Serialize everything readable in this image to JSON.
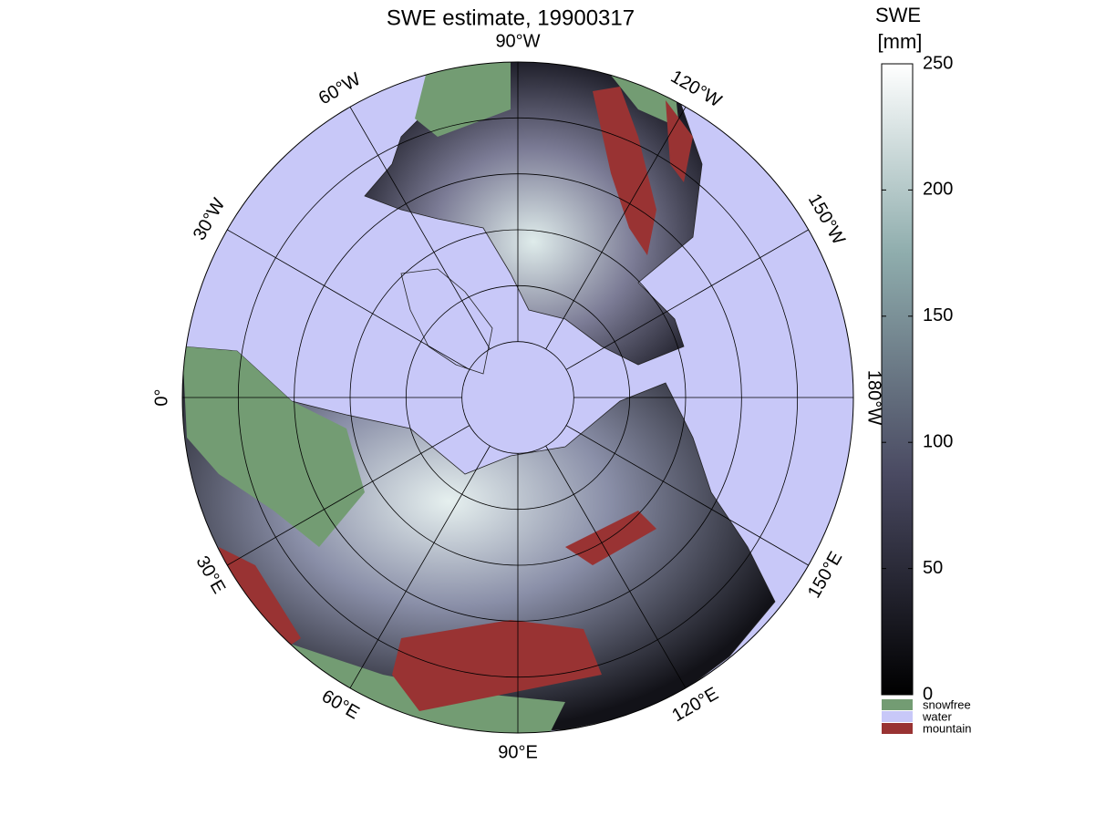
{
  "map": {
    "title": "SWE estimate, 19900317",
    "meridian_labels": [
      {
        "value": -90,
        "label": "90°W"
      },
      {
        "value": -60,
        "label": "60°W"
      },
      {
        "value": -30,
        "label": "30°W"
      },
      {
        "value": 0,
        "label": "0°"
      },
      {
        "value": 30,
        "label": "30°E"
      },
      {
        "value": 60,
        "label": "60°E"
      },
      {
        "value": 90,
        "label": "90°E"
      },
      {
        "value": 120,
        "label": "120°E"
      },
      {
        "value": 150,
        "label": "150°E"
      },
      {
        "value": 180,
        "label": "180°W"
      },
      {
        "value": -150,
        "label": "150°W"
      },
      {
        "value": -120,
        "label": "120°W"
      }
    ],
    "colorbar": {
      "title": [
        "SWE",
        "[mm]"
      ],
      "lim": [
        0,
        250
      ],
      "ticks": [
        0,
        50,
        100,
        150,
        200,
        250
      ]
    },
    "legend": [
      {
        "name": "snowfree",
        "color": "#739c73"
      },
      {
        "name": "water",
        "color": "#c8c8f8"
      },
      {
        "name": "mountain",
        "color": "#993333"
      }
    ]
  }
}
